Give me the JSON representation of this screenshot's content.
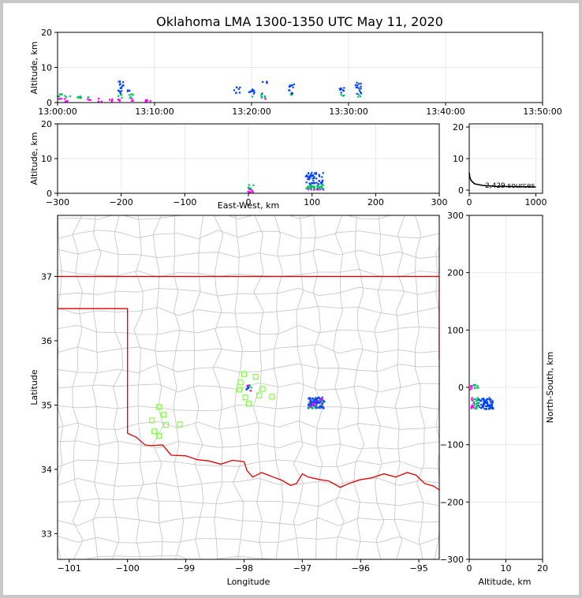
{
  "title": "Oklahoma LMA 1300-1350 UTC May 11, 2020",
  "colors": {
    "border": "#e00000",
    "county": "#c8c8c8",
    "station": "#80ff40",
    "low": "#ff00ff",
    "mid": "#00c060",
    "high": "#0040ff"
  },
  "chart_data": [
    {
      "name": "time-altitude",
      "type": "scatter",
      "ylabel": "Altitude, km",
      "ylim": [
        0,
        20
      ],
      "yticks": [
        "0",
        "10",
        "20"
      ],
      "xticks": [
        "13:00:00",
        "13:10:00",
        "13:20:00",
        "13:30:00",
        "13:40:00",
        "13:50:00"
      ],
      "xlim_minutes": [
        0,
        50
      ],
      "clusters": [
        {
          "t": 0.3,
          "z0": 0.3,
          "z1": 2.5
        },
        {
          "t": 1.0,
          "z0": 0.3,
          "z1": 2.0
        },
        {
          "t": 2.2,
          "z0": 0.3,
          "z1": 1.8
        },
        {
          "t": 3.2,
          "z0": 0.3,
          "z1": 1.6
        },
        {
          "t": 4.5,
          "z0": 0.3,
          "z1": 1.2
        },
        {
          "t": 5.5,
          "z0": 0.3,
          "z1": 1.0
        },
        {
          "t": 6.5,
          "z0": 0.3,
          "z1": 6.5
        },
        {
          "t": 7.5,
          "z0": 0.3,
          "z1": 3.5
        },
        {
          "t": 9.0,
          "z0": 0.3,
          "z1": 0.8
        },
        {
          "t": 9.3,
          "z0": 0.3,
          "z1": 0.6
        },
        {
          "t": 18.5,
          "z0": 2.5,
          "z1": 4.5
        },
        {
          "t": 20.0,
          "z0": 1.5,
          "z1": 4.0
        },
        {
          "t": 21.2,
          "z0": 1.0,
          "z1": 2.8
        },
        {
          "t": 21.3,
          "z0": 5.5,
          "z1": 6.0
        },
        {
          "t": 24.1,
          "z0": 1.0,
          "z1": 5.5
        },
        {
          "t": 29.3,
          "z0": 1.5,
          "z1": 4.2
        },
        {
          "t": 31.0,
          "z0": 1.5,
          "z1": 6.0
        }
      ]
    },
    {
      "name": "eastwest-altitude",
      "type": "scatter",
      "xlabel": "East-West, km",
      "ylabel": "Altitude, km",
      "xlim": [
        -300,
        300
      ],
      "ylim": [
        0,
        20
      ],
      "xticks": [
        "−300",
        "−200",
        "−100",
        "0",
        "100",
        "200",
        "300"
      ],
      "yticks": [
        "0",
        "10",
        "20"
      ],
      "clusters": [
        {
          "x0": -1,
          "x1": 8,
          "z0": 0.2,
          "z1": 2.5
        },
        {
          "x0": 90,
          "x1": 118,
          "z0": 1.0,
          "z1": 6.0
        }
      ]
    },
    {
      "name": "altitude-histogram",
      "type": "line",
      "annotation": "2,429 sources",
      "xticks": [
        "0",
        "1000"
      ],
      "yticks": [
        "0",
        "10",
        "20"
      ],
      "xlim": [
        0,
        1100
      ],
      "ylim": [
        -1,
        21
      ],
      "points": [
        [
          0,
          5.5
        ],
        [
          10,
          4
        ],
        [
          30,
          3
        ],
        [
          80,
          2
        ],
        [
          200,
          1.5
        ],
        [
          400,
          1.2
        ],
        [
          1000,
          1.0
        ]
      ]
    },
    {
      "name": "plan-view-map",
      "type": "scatter",
      "xlabel": "Longitude",
      "ylabel": "Latitude",
      "xlim": [
        -101.2,
        -94.65
      ],
      "ylim": [
        32.6,
        37.95
      ],
      "xticks": [
        "−101",
        "−100",
        "−99",
        "−98",
        "−97",
        "−96",
        "−95"
      ],
      "yticks": [
        "33",
        "34",
        "35",
        "36",
        "37"
      ],
      "stations": [
        [
          -99.46,
          34.97
        ],
        [
          -99.38,
          34.85
        ],
        [
          -99.34,
          34.69
        ],
        [
          -99.58,
          34.76
        ],
        [
          -99.54,
          34.59
        ],
        [
          -99.46,
          34.52
        ],
        [
          -99.1,
          34.7
        ],
        [
          -98.0,
          35.48
        ],
        [
          -98.06,
          35.35
        ],
        [
          -98.08,
          35.24
        ],
        [
          -97.8,
          35.44
        ],
        [
          -97.68,
          35.25
        ],
        [
          -97.74,
          35.15
        ],
        [
          -97.52,
          35.13
        ],
        [
          -97.98,
          35.12
        ],
        [
          -97.92,
          35.02
        ]
      ],
      "clusters": [
        {
          "lon0": -97.97,
          "lon1": -97.87,
          "lat0": 35.22,
          "lat1": 35.32
        },
        {
          "lon0": -96.9,
          "lon1": -96.62,
          "lat0": 34.95,
          "lat1": 35.12
        }
      ]
    },
    {
      "name": "altitude-northsouth",
      "type": "scatter",
      "xlabel": "Altitude, km",
      "ylabel": "North-South, km",
      "xlim": [
        0,
        20
      ],
      "ylim": [
        -300,
        300
      ],
      "xticks": [
        "0",
        "10",
        "20"
      ],
      "yticks": [
        "300",
        "200",
        "100",
        "0",
        "−100",
        "−200",
        "−300"
      ],
      "clusters": [
        {
          "z0": 0.2,
          "z1": 2.5,
          "y0": -5,
          "y1": 5
        },
        {
          "z0": 0.5,
          "z1": 6.5,
          "y0": -38,
          "y1": -18
        }
      ]
    }
  ]
}
